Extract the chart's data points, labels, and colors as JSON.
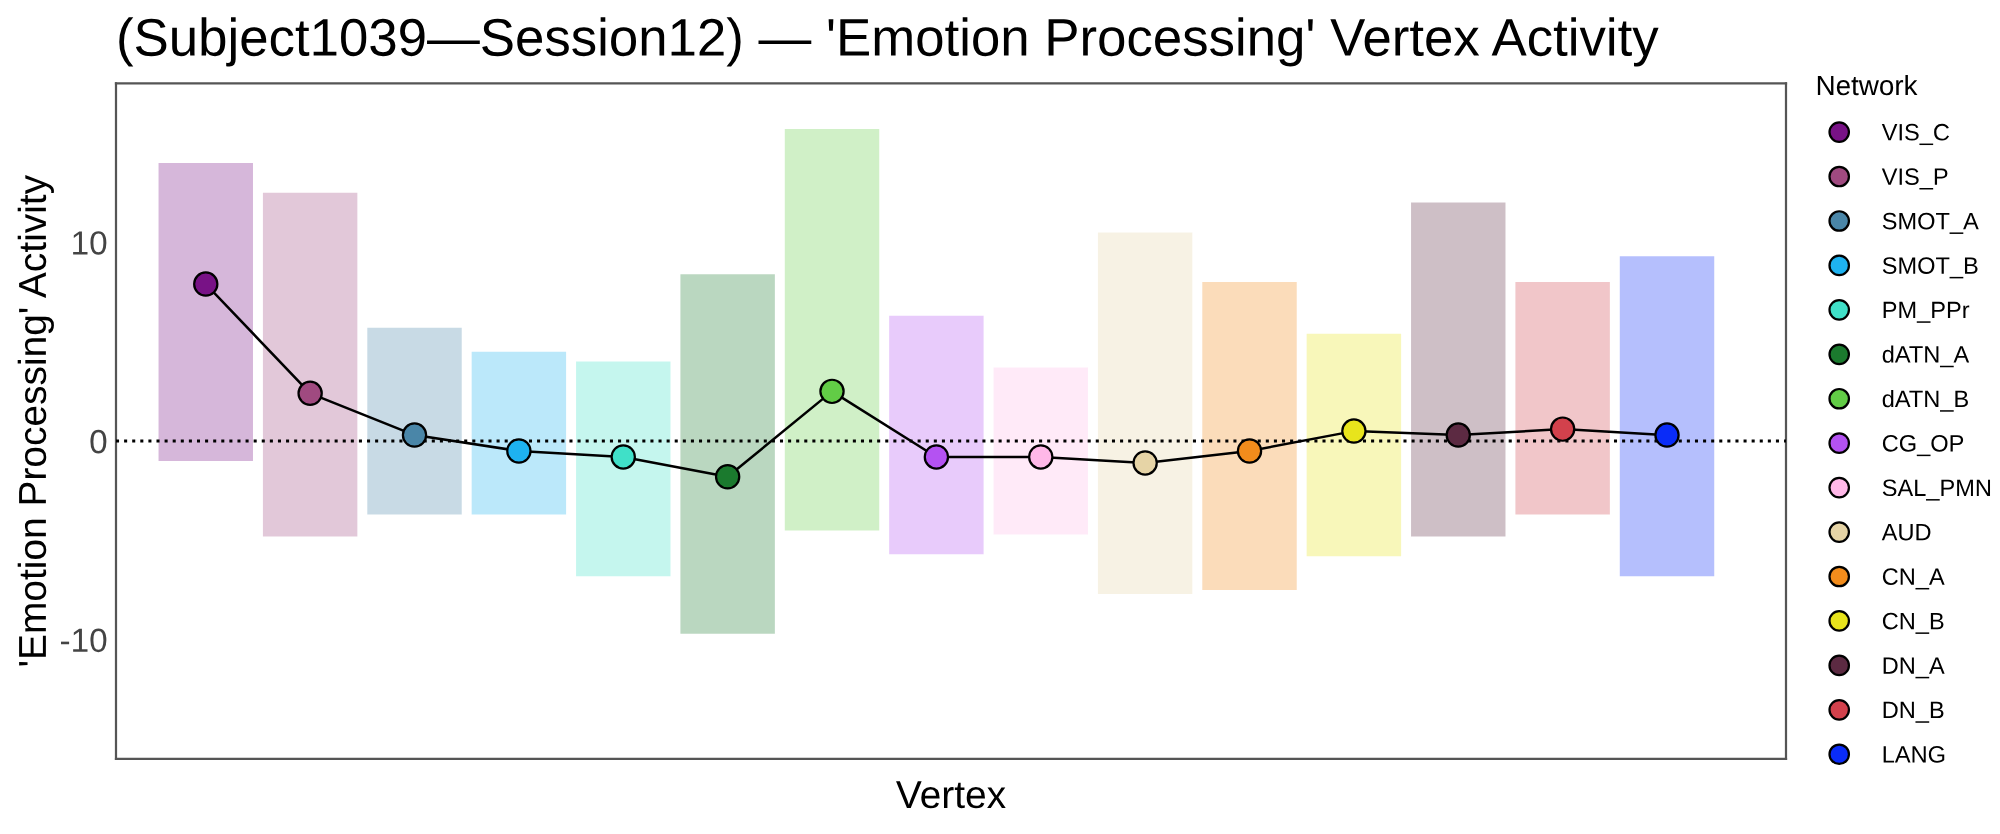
{
  "chart_data": {
    "type": "scatter",
    "title": "(Subject1039—Session12) — 'Emotion Processing' Vertex Activity",
    "xlabel": "Vertex",
    "ylabel": "'Emotion Processing' Activity",
    "legend_title": "Network",
    "categories": [
      null,
      null,
      null,
      null,
      null,
      null,
      null,
      null,
      null,
      null,
      null,
      null,
      null,
      null,
      null
    ],
    "ylim": [
      -16,
      18
    ],
    "yticks": [
      -10,
      0,
      10
    ],
    "legend": "right",
    "tick_labels": "y",
    "marker": "circle",
    "ref_lines": [
      {
        "axis": "y",
        "value": 0,
        "line_style": "dotted",
        "color": "#000000"
      }
    ],
    "series": [
      {
        "type": "line",
        "color": "#000000",
        "marker": "none",
        "values": [
          7.9,
          2.4,
          0.3,
          -0.5,
          -0.8,
          -1.8,
          2.5,
          -0.8,
          -0.8,
          -1.1,
          -0.5,
          0.5,
          0.3,
          0.6,
          0.3
        ]
      },
      {
        "name": "VIS_C",
        "color": "#781286",
        "values": [
          7.9,
          null,
          null,
          null,
          null,
          null,
          null,
          null,
          null,
          null,
          null,
          null,
          null,
          null,
          null
        ],
        "errors": [
          [
            -1.0,
            14.0
          ],
          null,
          null,
          null,
          null,
          null,
          null,
          null,
          null,
          null,
          null,
          null,
          null,
          null,
          null
        ]
      },
      {
        "name": "VIS_P",
        "color": "#a04a80",
        "values": [
          null,
          2.4,
          null,
          null,
          null,
          null,
          null,
          null,
          null,
          null,
          null,
          null,
          null,
          null,
          null
        ],
        "errors": [
          null,
          [
            -4.8,
            12.5
          ],
          null,
          null,
          null,
          null,
          null,
          null,
          null,
          null,
          null,
          null,
          null,
          null,
          null
        ]
      },
      {
        "name": "SMOT_A",
        "color": "#4a86a8",
        "values": [
          null,
          null,
          0.3,
          null,
          null,
          null,
          null,
          null,
          null,
          null,
          null,
          null,
          null,
          null,
          null
        ],
        "errors": [
          null,
          null,
          [
            -3.7,
            5.7
          ],
          null,
          null,
          null,
          null,
          null,
          null,
          null,
          null,
          null,
          null,
          null,
          null
        ]
      },
      {
        "name": "SMOT_B",
        "color": "#1eb2f0",
        "values": [
          null,
          null,
          null,
          -0.5,
          null,
          null,
          null,
          null,
          null,
          null,
          null,
          null,
          null,
          null,
          null
        ],
        "errors": [
          null,
          null,
          null,
          [
            -3.7,
            4.5
          ],
          null,
          null,
          null,
          null,
          null,
          null,
          null,
          null,
          null,
          null,
          null
        ]
      },
      {
        "name": "PM_PPr",
        "color": "#40e0c8",
        "values": [
          null,
          null,
          null,
          null,
          -0.8,
          null,
          null,
          null,
          null,
          null,
          null,
          null,
          null,
          null,
          null
        ],
        "errors": [
          null,
          null,
          null,
          null,
          [
            -6.8,
            4.0
          ],
          null,
          null,
          null,
          null,
          null,
          null,
          null,
          null,
          null,
          null
        ]
      },
      {
        "name": "dATN_A",
        "color": "#1b7a2e",
        "values": [
          null,
          null,
          null,
          null,
          null,
          -1.8,
          null,
          null,
          null,
          null,
          null,
          null,
          null,
          null,
          null
        ],
        "errors": [
          null,
          null,
          null,
          null,
          null,
          [
            -9.7,
            8.4
          ],
          null,
          null,
          null,
          null,
          null,
          null,
          null,
          null,
          null
        ]
      },
      {
        "name": "dATN_B",
        "color": "#62cc46",
        "values": [
          null,
          null,
          null,
          null,
          null,
          null,
          2.5,
          null,
          null,
          null,
          null,
          null,
          null,
          null,
          null
        ],
        "errors": [
          null,
          null,
          null,
          null,
          null,
          null,
          [
            -4.5,
            15.7
          ],
          null,
          null,
          null,
          null,
          null,
          null,
          null,
          null
        ]
      },
      {
        "name": "CG_OP",
        "color": "#b452f2",
        "values": [
          null,
          null,
          null,
          null,
          null,
          null,
          null,
          -0.8,
          null,
          null,
          null,
          null,
          null,
          null,
          null
        ],
        "errors": [
          null,
          null,
          null,
          null,
          null,
          null,
          null,
          [
            -5.7,
            6.3
          ],
          null,
          null,
          null,
          null,
          null,
          null,
          null
        ]
      },
      {
        "name": "SAL_PMN",
        "color": "#ffb8e8",
        "values": [
          null,
          null,
          null,
          null,
          null,
          null,
          null,
          null,
          -0.8,
          null,
          null,
          null,
          null,
          null,
          null
        ],
        "errors": [
          null,
          null,
          null,
          null,
          null,
          null,
          null,
          null,
          [
            -4.7,
            3.7
          ],
          null,
          null,
          null,
          null,
          null,
          null
        ]
      },
      {
        "name": "AUD",
        "color": "#e6d4a6",
        "values": [
          null,
          null,
          null,
          null,
          null,
          null,
          null,
          null,
          null,
          -1.1,
          null,
          null,
          null,
          null,
          null
        ],
        "errors": [
          null,
          null,
          null,
          null,
          null,
          null,
          null,
          null,
          null,
          [
            -7.7,
            10.5
          ],
          null,
          null,
          null,
          null,
          null
        ]
      },
      {
        "name": "CN_A",
        "color": "#f28c1c",
        "values": [
          null,
          null,
          null,
          null,
          null,
          null,
          null,
          null,
          null,
          null,
          -0.5,
          null,
          null,
          null,
          null
        ],
        "errors": [
          null,
          null,
          null,
          null,
          null,
          null,
          null,
          null,
          null,
          null,
          [
            -7.5,
            8.0
          ],
          null,
          null,
          null,
          null
        ]
      },
      {
        "name": "CN_B",
        "color": "#e8e41c",
        "values": [
          null,
          null,
          null,
          null,
          null,
          null,
          null,
          null,
          null,
          null,
          null,
          0.5,
          null,
          null,
          null
        ],
        "errors": [
          null,
          null,
          null,
          null,
          null,
          null,
          null,
          null,
          null,
          null,
          null,
          [
            -5.8,
            5.4
          ],
          null,
          null,
          null
        ]
      },
      {
        "name": "DN_A",
        "color": "#5c2a42",
        "values": [
          null,
          null,
          null,
          null,
          null,
          null,
          null,
          null,
          null,
          null,
          null,
          null,
          0.3,
          null,
          null
        ],
        "errors": [
          null,
          null,
          null,
          null,
          null,
          null,
          null,
          null,
          null,
          null,
          null,
          null,
          [
            -4.8,
            12.0
          ],
          null,
          null
        ]
      },
      {
        "name": "DN_B",
        "color": "#d2414c",
        "values": [
          null,
          null,
          null,
          null,
          null,
          null,
          null,
          null,
          null,
          null,
          null,
          null,
          null,
          0.6,
          null
        ],
        "errors": [
          null,
          null,
          null,
          null,
          null,
          null,
          null,
          null,
          null,
          null,
          null,
          null,
          null,
          [
            -3.7,
            8.0
          ],
          null
        ]
      },
      {
        "name": "LANG",
        "color": "#0a2cf8",
        "values": [
          null,
          null,
          null,
          null,
          null,
          null,
          null,
          null,
          null,
          null,
          null,
          null,
          null,
          null,
          0.3
        ],
        "errors": [
          null,
          null,
          null,
          null,
          null,
          null,
          null,
          null,
          null,
          null,
          null,
          null,
          null,
          null,
          [
            -6.8,
            9.3
          ]
        ]
      }
    ]
  }
}
